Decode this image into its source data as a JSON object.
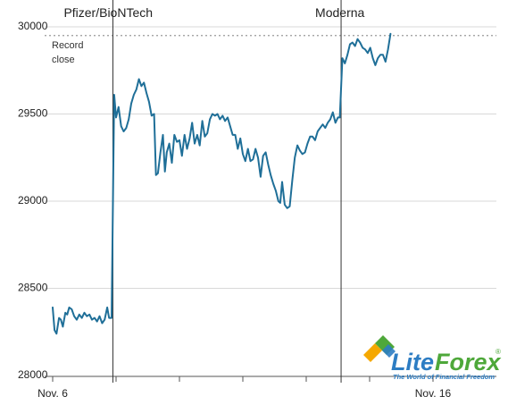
{
  "chart_data": {
    "type": "line",
    "title": "",
    "xlabel": "",
    "ylabel": "",
    "ylim": [
      28000,
      30000
    ],
    "y_ticks": [
      28000,
      28500,
      29000,
      29500,
      30000
    ],
    "x_tick_labels": [
      {
        "x": 0,
        "label": "Nov. 6"
      },
      {
        "x": 1,
        "label": ""
      },
      {
        "x": 2,
        "label": ""
      },
      {
        "x": 3,
        "label": ""
      },
      {
        "x": 4,
        "label": ""
      },
      {
        "x": 5,
        "label": ""
      },
      {
        "x": 6,
        "label": "Nov. 16"
      }
    ],
    "xlim": [
      0,
      7
    ],
    "grid": "horizontal",
    "line_color": "#1f6f98",
    "series": [
      {
        "points": [
          [
            0.0,
            28390
          ],
          [
            0.03,
            28260
          ],
          [
            0.06,
            28240
          ],
          [
            0.1,
            28330
          ],
          [
            0.13,
            28320
          ],
          [
            0.16,
            28280
          ],
          [
            0.2,
            28360
          ],
          [
            0.23,
            28350
          ],
          [
            0.26,
            28390
          ],
          [
            0.3,
            28380
          ],
          [
            0.34,
            28340
          ],
          [
            0.38,
            28320
          ],
          [
            0.42,
            28350
          ],
          [
            0.46,
            28330
          ],
          [
            0.5,
            28360
          ],
          [
            0.54,
            28340
          ],
          [
            0.58,
            28350
          ],
          [
            0.62,
            28320
          ],
          [
            0.66,
            28330
          ],
          [
            0.7,
            28310
          ],
          [
            0.74,
            28340
          ],
          [
            0.78,
            28300
          ],
          [
            0.82,
            28320
          ],
          [
            0.86,
            28390
          ],
          [
            0.89,
            28330
          ],
          [
            0.93,
            28330
          ],
          [
            0.97,
            29610
          ],
          [
            1.0,
            29480
          ],
          [
            1.04,
            29540
          ],
          [
            1.08,
            29430
          ],
          [
            1.12,
            29400
          ],
          [
            1.16,
            29420
          ],
          [
            1.2,
            29470
          ],
          [
            1.24,
            29560
          ],
          [
            1.28,
            29610
          ],
          [
            1.32,
            29640
          ],
          [
            1.36,
            29700
          ],
          [
            1.4,
            29660
          ],
          [
            1.44,
            29680
          ],
          [
            1.48,
            29620
          ],
          [
            1.52,
            29570
          ],
          [
            1.56,
            29490
          ],
          [
            1.6,
            29500
          ],
          [
            1.63,
            29150
          ],
          [
            1.66,
            29160
          ],
          [
            1.7,
            29280
          ],
          [
            1.74,
            29380
          ],
          [
            1.77,
            29170
          ],
          [
            1.8,
            29280
          ],
          [
            1.84,
            29330
          ],
          [
            1.88,
            29220
          ],
          [
            1.92,
            29380
          ],
          [
            1.96,
            29340
          ],
          [
            2.0,
            29350
          ],
          [
            2.04,
            29260
          ],
          [
            2.08,
            29380
          ],
          [
            2.12,
            29300
          ],
          [
            2.16,
            29360
          ],
          [
            2.2,
            29450
          ],
          [
            2.24,
            29330
          ],
          [
            2.28,
            29380
          ],
          [
            2.32,
            29320
          ],
          [
            2.36,
            29460
          ],
          [
            2.4,
            29370
          ],
          [
            2.44,
            29390
          ],
          [
            2.48,
            29470
          ],
          [
            2.52,
            29500
          ],
          [
            2.56,
            29490
          ],
          [
            2.6,
            29500
          ],
          [
            2.64,
            29470
          ],
          [
            2.68,
            29490
          ],
          [
            2.72,
            29460
          ],
          [
            2.76,
            29480
          ],
          [
            2.8,
            29430
          ],
          [
            2.84,
            29380
          ],
          [
            2.88,
            29380
          ],
          [
            2.92,
            29300
          ],
          [
            2.96,
            29360
          ],
          [
            3.0,
            29270
          ],
          [
            3.04,
            29230
          ],
          [
            3.08,
            29300
          ],
          [
            3.12,
            29230
          ],
          [
            3.16,
            29240
          ],
          [
            3.2,
            29300
          ],
          [
            3.24,
            29250
          ],
          [
            3.28,
            29140
          ],
          [
            3.32,
            29260
          ],
          [
            3.36,
            29280
          ],
          [
            3.4,
            29210
          ],
          [
            3.44,
            29150
          ],
          [
            3.48,
            29100
          ],
          [
            3.52,
            29060
          ],
          [
            3.56,
            29000
          ],
          [
            3.59,
            28990
          ],
          [
            3.62,
            29110
          ],
          [
            3.66,
            28980
          ],
          [
            3.7,
            28960
          ],
          [
            3.74,
            28970
          ],
          [
            3.78,
            29120
          ],
          [
            3.82,
            29250
          ],
          [
            3.86,
            29320
          ],
          [
            3.9,
            29290
          ],
          [
            3.94,
            29270
          ],
          [
            3.98,
            29280
          ],
          [
            4.02,
            29330
          ],
          [
            4.06,
            29370
          ],
          [
            4.1,
            29370
          ],
          [
            4.14,
            29350
          ],
          [
            4.18,
            29400
          ],
          [
            4.22,
            29420
          ],
          [
            4.26,
            29440
          ],
          [
            4.3,
            29420
          ],
          [
            4.34,
            29450
          ],
          [
            4.38,
            29470
          ],
          [
            4.42,
            29510
          ],
          [
            4.46,
            29450
          ],
          [
            4.5,
            29480
          ],
          [
            4.53,
            29480
          ],
          [
            4.57,
            29820
          ],
          [
            4.61,
            29790
          ],
          [
            4.65,
            29840
          ],
          [
            4.69,
            29900
          ],
          [
            4.73,
            29910
          ],
          [
            4.77,
            29890
          ],
          [
            4.81,
            29930
          ],
          [
            4.85,
            29910
          ],
          [
            4.89,
            29880
          ],
          [
            4.93,
            29870
          ],
          [
            4.97,
            29850
          ],
          [
            5.01,
            29880
          ],
          [
            5.05,
            29820
          ],
          [
            5.09,
            29780
          ],
          [
            5.13,
            29820
          ],
          [
            5.17,
            29840
          ],
          [
            5.21,
            29840
          ],
          [
            5.25,
            29800
          ],
          [
            5.29,
            29870
          ],
          [
            5.33,
            29960
          ]
        ]
      }
    ],
    "annotations": [
      {
        "x": 0.95,
        "label": "Pfizer/BioNTech"
      },
      {
        "x": 4.55,
        "label": "Moderna"
      }
    ],
    "reference_line": {
      "y": 29950,
      "label_line1": "Record",
      "label_line2": "close"
    }
  },
  "watermark": {
    "brand_part1": "Lite",
    "brand_part2": "Forex",
    "registered_mark": "®",
    "tagline": "The World of Financial Freedom"
  }
}
